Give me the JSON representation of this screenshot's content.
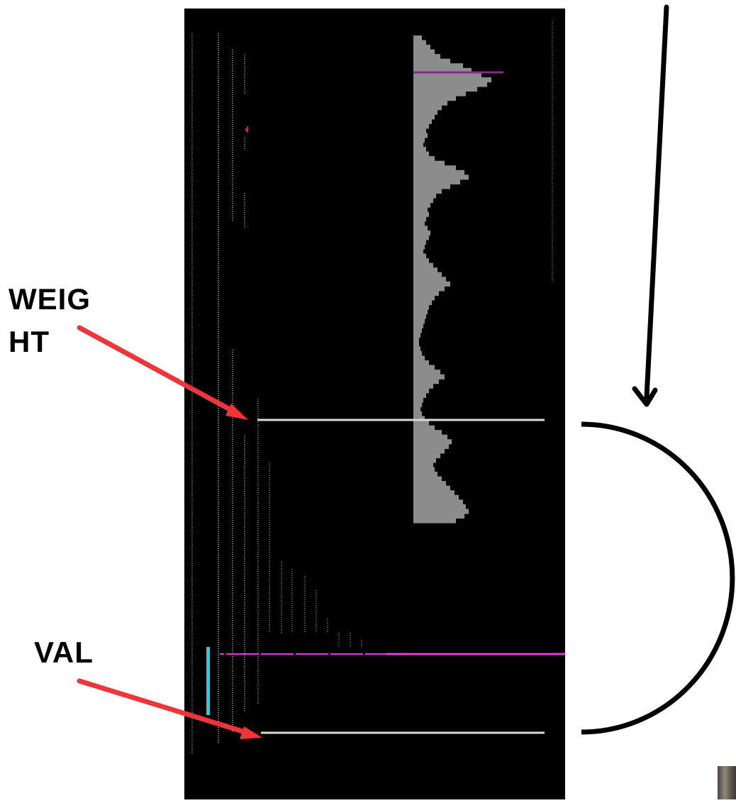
{
  "labels": {
    "weight_line1": "WEIG",
    "weight_line2": "HT",
    "val": "VAL"
  },
  "colors": {
    "panel_bg": "#000000",
    "histogram": "#8c8c8c",
    "level_line": "#d9d9d9",
    "magenta": "#e23be2",
    "purple": "#8b2a8b",
    "cyan": "#18d6e0",
    "arrow_red": "#f0353a",
    "bracket": "#000000"
  },
  "chart_data": {
    "type": "bar",
    "orientation": "horizontal",
    "description_free": true,
    "profile_values": [
      12,
      18,
      24,
      30,
      38,
      52,
      70,
      82,
      96,
      110,
      104,
      90,
      74,
      60,
      48,
      40,
      34,
      30,
      26,
      22,
      18,
      20,
      16,
      14,
      18,
      22,
      30,
      44,
      60,
      72,
      78,
      66,
      52,
      40,
      32,
      28,
      24,
      20,
      22,
      18,
      16,
      20,
      24,
      22,
      18,
      16,
      14,
      18,
      22,
      28,
      34,
      40,
      46,
      52,
      44,
      36,
      30,
      26,
      22,
      20,
      18,
      16,
      14,
      12,
      10,
      8,
      8,
      10,
      12,
      16,
      22,
      30,
      38,
      44,
      36,
      28,
      22,
      18,
      14,
      12,
      10,
      12,
      16,
      22,
      30,
      40,
      48,
      54,
      50,
      44,
      38,
      32,
      28,
      30,
      34,
      40,
      46,
      52,
      58,
      64,
      70,
      74,
      78,
      72,
      60
    ]
  }
}
